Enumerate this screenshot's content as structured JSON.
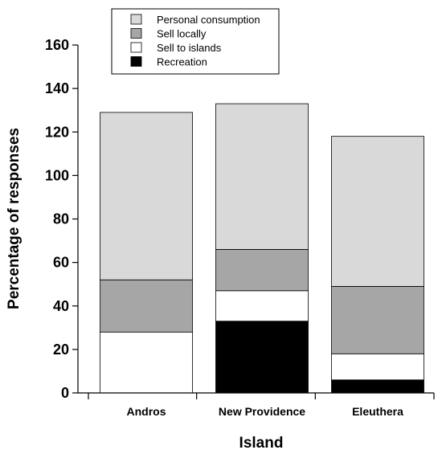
{
  "chart_data": {
    "type": "bar",
    "stacked": true,
    "xlabel": "Island",
    "ylabel": "Percentage of responses",
    "ylim": [
      0,
      160
    ],
    "yticks": [
      0,
      20,
      40,
      60,
      80,
      100,
      120,
      140,
      160
    ],
    "categories": [
      "Andros",
      "New Providence",
      "Eleuthera"
    ],
    "series": [
      {
        "name": "Recreation",
        "color": "#000000",
        "values": [
          0,
          33,
          6
        ]
      },
      {
        "name": "Sell to islands",
        "color": "#ffffff",
        "values": [
          28,
          14,
          12
        ]
      },
      {
        "name": "Sell locally",
        "color": "#a6a6a6",
        "values": [
          24,
          19,
          31
        ]
      },
      {
        "name": "Personal consumption",
        "color": "#d9d9d9",
        "values": [
          77,
          67,
          69
        ]
      }
    ],
    "legend": {
      "position": "top-center",
      "order": [
        "Personal consumption",
        "Sell locally",
        "Sell to islands",
        "Recreation"
      ]
    },
    "grid": false
  }
}
